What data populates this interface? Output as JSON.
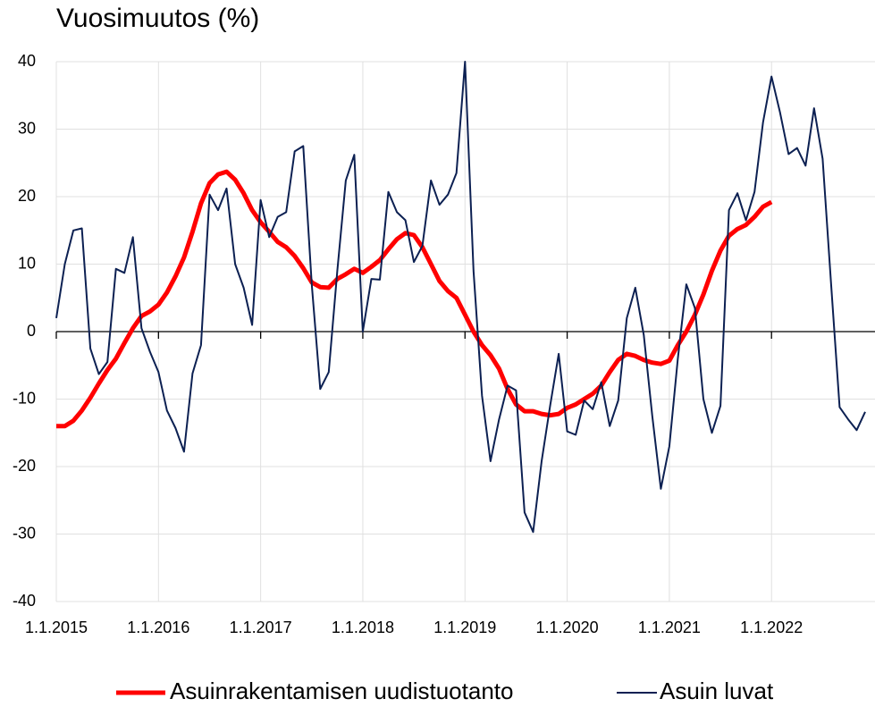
{
  "chart_data": {
    "type": "line",
    "title": "Vuosimuutos (%)",
    "categories": [
      "1.1.2015",
      null,
      null,
      null,
      null,
      null,
      null,
      null,
      null,
      null,
      null,
      null,
      "1.1.2016",
      null,
      null,
      null,
      null,
      null,
      null,
      null,
      null,
      null,
      null,
      null,
      "1.1.2017",
      null,
      null,
      null,
      null,
      null,
      null,
      null,
      null,
      null,
      null,
      null,
      "1.1.2018",
      null,
      null,
      null,
      null,
      null,
      null,
      null,
      null,
      null,
      null,
      null,
      "1.1.2019",
      null,
      null,
      null,
      null,
      null,
      null,
      null,
      null,
      null,
      null,
      null,
      "1.1.2020",
      null,
      null,
      null,
      null,
      null,
      null,
      null,
      null,
      null,
      null,
      null,
      "1.1.2021",
      null,
      null,
      null,
      null,
      null,
      null,
      null,
      null,
      null,
      null,
      null,
      "1.1.2022",
      null,
      null,
      null,
      null,
      null,
      null,
      null,
      null,
      null,
      null,
      null
    ],
    "series": [
      {
        "name": "Asuinrakentamisen uudistuotanto",
        "color": "#ff0000",
        "values": [
          -14,
          -14,
          -13.2,
          -11.7,
          -9.8,
          -7.7,
          -5.7,
          -4,
          -1.7,
          0.5,
          2.3,
          3,
          4,
          5.8,
          8.2,
          11,
          14.8,
          19,
          22,
          23.3,
          23.7,
          22.5,
          20.5,
          18,
          16.2,
          14.8,
          13.3,
          12.5,
          11.2,
          9.4,
          7.3,
          6.6,
          6.5,
          7.8,
          8.5,
          9.3,
          8.7,
          9.6,
          10.6,
          12.2,
          13.7,
          14.6,
          14.3,
          12.5,
          10,
          7.5,
          6,
          5,
          2.5,
          0,
          -2,
          -3.5,
          -5.5,
          -8.5,
          -10.8,
          -11.8,
          -11.8,
          -12.2,
          -12.4,
          -12.2,
          -11.3,
          -10.8,
          -10,
          -9.2,
          -8,
          -6,
          -4.2,
          -3.3,
          -3.6,
          -4.2,
          -4.6,
          -4.8,
          -4.3,
          -2,
          0,
          2.5,
          5.5,
          9,
          12,
          14.2,
          15.2,
          15.8,
          17,
          18.5,
          19.2,
          null,
          null,
          null,
          null,
          null,
          null,
          null,
          null,
          null,
          null,
          null
        ]
      },
      {
        "name": "Asuin luvat",
        "color": "#0c2052",
        "values": [
          2,
          10,
          15,
          15.3,
          -2.5,
          -6.3,
          -4.5,
          9.3,
          8.7,
          14,
          0.5,
          -3,
          -6,
          -11.7,
          -14.3,
          -17.8,
          -6.2,
          -2,
          20.3,
          18,
          21.2,
          10,
          6.5,
          1,
          19.5,
          14,
          17,
          17.7,
          26.7,
          27.5,
          7,
          -8.5,
          -6,
          9,
          22.4,
          26.2,
          0,
          7.8,
          7.7,
          20.7,
          17.7,
          16.5,
          10.3,
          12.7,
          22.4,
          18.8,
          20.3,
          23.5,
          40,
          9,
          -9.5,
          -19.2,
          -13,
          -8,
          -8.7,
          -26.8,
          -29.7,
          -19.2,
          -11,
          -3.3,
          -14.8,
          -15.3,
          -10.2,
          -11.5,
          -7.5,
          -14,
          -10.2,
          2,
          6.5,
          -0.5,
          -12.5,
          -23.3,
          -17,
          -4,
          7,
          3.5,
          -10,
          -15,
          -11,
          18,
          20.5,
          16.5,
          20.7,
          31,
          37.8,
          32.5,
          26.3,
          27.2,
          24.6,
          33.1,
          25.6,
          7,
          -11.2,
          -13,
          -14.6,
          -11.9
        ]
      }
    ],
    "ylim": [
      -40,
      40
    ],
    "yticks": [
      -40,
      -30,
      -20,
      -10,
      0,
      10,
      20,
      30,
      40
    ],
    "grid": true,
    "legend": "bottom"
  }
}
